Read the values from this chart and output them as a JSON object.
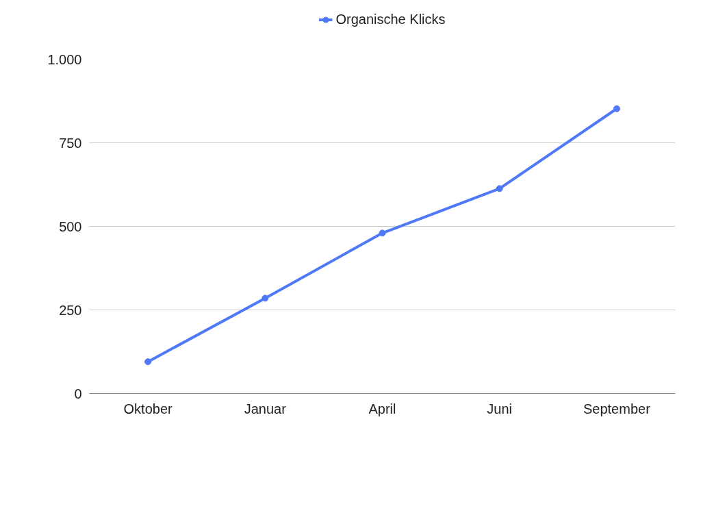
{
  "chart_data": {
    "type": "line",
    "categories": [
      "Oktober",
      "Januar",
      "April",
      "Juni",
      "September"
    ],
    "series": [
      {
        "name": "Organische Klicks",
        "color": "#5079f7",
        "values": [
          95,
          285,
          480,
          613,
          852
        ]
      }
    ],
    "ylim": [
      0,
      1000
    ],
    "yticks": [
      0,
      250,
      500,
      750,
      {
        "value": 1000,
        "label": "1.000"
      }
    ],
    "grid": "y",
    "legend": "top",
    "marker": "circle"
  }
}
